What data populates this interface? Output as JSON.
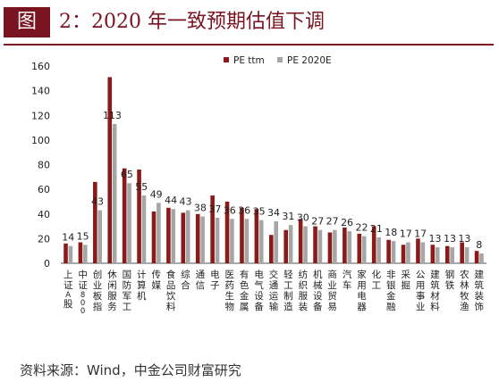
{
  "header": {
    "tag": "图",
    "title": "2：2020 年一致预期估值下调"
  },
  "source": "资料来源：Wind，中金公司财富研究",
  "chart_data": {
    "type": "bar",
    "ylim": [
      0,
      160
    ],
    "yticks": [
      0,
      20,
      40,
      60,
      80,
      100,
      120,
      140,
      160
    ],
    "legend_position": "top-right",
    "categories": [
      "上证A股",
      "中证800",
      "创业板指",
      "休闲服务",
      "国防军工",
      "计算机",
      "传媒",
      "食品饮料",
      "综合",
      "通信",
      "电子",
      "医药生物",
      "有色金属",
      "电气设备",
      "交通运输",
      "轻工制造",
      "纺织服装",
      "机械设备",
      "商业贸易",
      "汽车",
      "家用电器",
      "化工",
      "非银金融",
      "采掘",
      "公用事业",
      "建筑材料",
      "钢铁",
      "农林牧渔",
      "建筑装饰"
    ],
    "series": [
      {
        "name": "PE ttm",
        "color": "#8b1a1a",
        "values": [
          16,
          17,
          66,
          151,
          77,
          76,
          42,
          45,
          41,
          40,
          55,
          50,
          45,
          44,
          23,
          27,
          36,
          30,
          25,
          29,
          24,
          30,
          19,
          15,
          20,
          15,
          14,
          17,
          10
        ]
      },
      {
        "name": "PE 2020E",
        "color": "#a6a6a6",
        "values": [
          14,
          15,
          43,
          113,
          65,
          55,
          49,
          44,
          43,
          38,
          37,
          36,
          36,
          35,
          34,
          31,
          30,
          27,
          27,
          26,
          22,
          21,
          18,
          17,
          17,
          13,
          13,
          13,
          8
        ]
      }
    ],
    "value_labels": [
      "14",
      "15",
      "43",
      "113",
      "65",
      "55",
      "49",
      "44",
      "43",
      "38",
      "37",
      "36",
      "36",
      "35",
      "34",
      "31",
      "30",
      "27",
      "27",
      "26",
      "22",
      "21",
      "18",
      "17",
      "17",
      "13",
      "13",
      "13",
      "8"
    ]
  }
}
